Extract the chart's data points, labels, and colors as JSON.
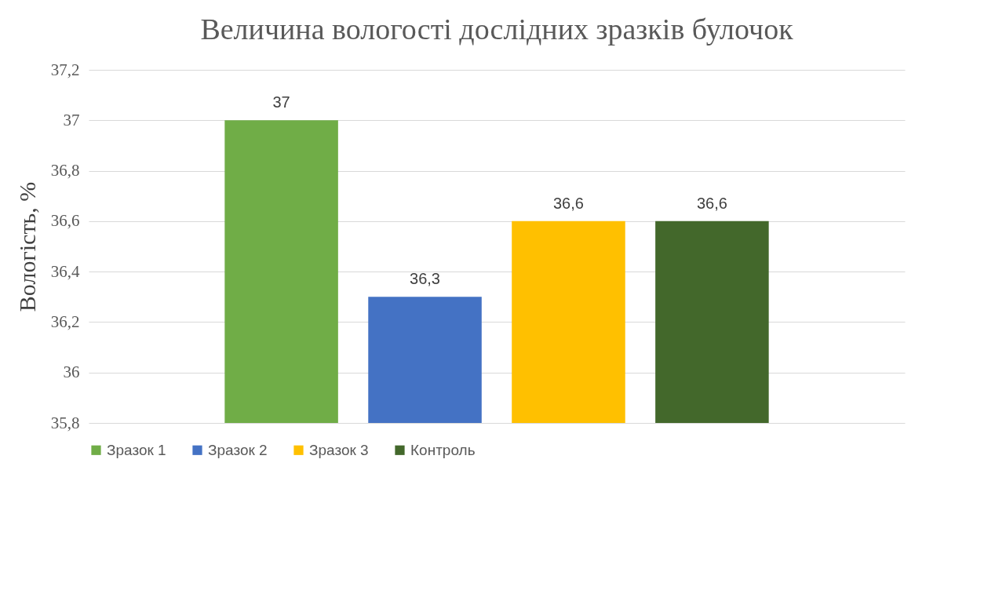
{
  "chart_data": {
    "type": "bar",
    "title": "Величина вологості дослідних зразків булочок",
    "ylabel": "Вологість, %",
    "categories": [
      null
    ],
    "series": [
      {
        "name": "Зразок 1",
        "color": "#70ad47",
        "values": [
          37
        ],
        "value_labels": [
          "37"
        ]
      },
      {
        "name": "Зразок 2",
        "color": "#4472c4",
        "values": [
          36.3
        ],
        "value_labels": [
          "36,3"
        ]
      },
      {
        "name": "Зразок 3",
        "color": "#ffc000",
        "values": [
          36.6
        ],
        "value_labels": [
          "36,6"
        ]
      },
      {
        "name": "Контроль",
        "color": "#43682b",
        "values": [
          36.6
        ],
        "value_labels": [
          "36,6"
        ]
      }
    ],
    "ylim": [
      35.8,
      37.2
    ],
    "yticks": [
      {
        "value": 35.8,
        "label": "35,8"
      },
      36,
      {
        "value": 36.2,
        "label": "36,2"
      },
      {
        "value": 36.4,
        "label": "36,4"
      },
      {
        "value": 36.6,
        "label": "36,6"
      },
      {
        "value": 36.8,
        "label": "36,8"
      },
      37,
      {
        "value": 37.2,
        "label": "37,2"
      }
    ],
    "grid": "y",
    "legend": "bottom",
    "tick_labels": "y"
  }
}
